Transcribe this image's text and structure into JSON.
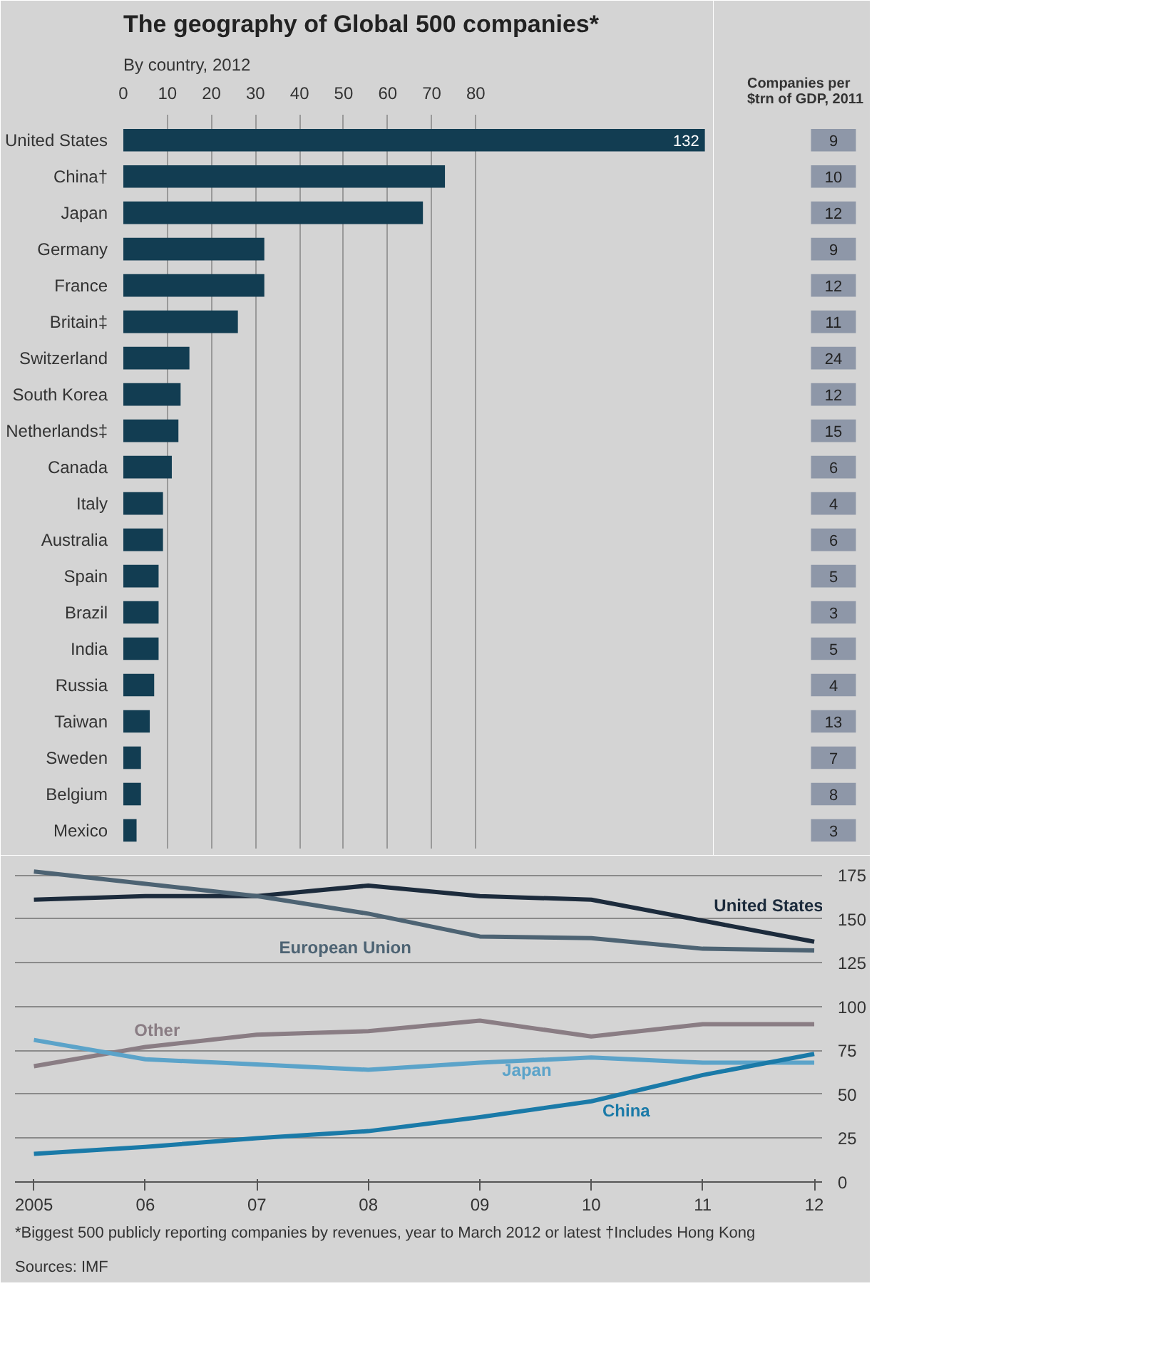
{
  "chart_data": [
    {
      "type": "bar",
      "title": "The geography of Global 500 companies*",
      "subtitle": "By country, 2012",
      "orientation": "horizontal",
      "categories": [
        "United States",
        "China†",
        "Japan",
        "Germany",
        "France",
        "Britain‡",
        "Switzerland",
        "South Korea",
        "Netherlands‡",
        "Canada",
        "Italy",
        "Australia",
        "Spain",
        "Brazil",
        "India",
        "Russia",
        "Taiwan",
        "Sweden",
        "Belgium",
        "Mexico"
      ],
      "values": [
        132,
        73,
        68,
        32,
        32,
        26,
        15,
        13,
        12.5,
        11,
        9,
        9,
        8,
        8,
        8,
        7,
        6,
        4,
        4,
        3
      ],
      "value_labels": [
        "132",
        null,
        null,
        null,
        null,
        null,
        null,
        null,
        null,
        null,
        null,
        null,
        null,
        null,
        null,
        null,
        null,
        null,
        null,
        null
      ],
      "color": "#123d52",
      "xlim": [
        0,
        134
      ],
      "xticks": [
        0,
        10,
        20,
        30,
        40,
        50,
        60,
        70,
        80
      ],
      "grid": "x"
    },
    {
      "type": "other",
      "title": "Companies per $trn of GDP, 2011",
      "values": [
        9,
        10,
        12,
        9,
        12,
        11,
        24,
        12,
        15,
        6,
        4,
        6,
        5,
        3,
        5,
        4,
        13,
        7,
        8,
        3
      ],
      "data_labels": true
    },
    {
      "type": "line",
      "x": [
        2005,
        2006,
        2007,
        2008,
        2009,
        2010,
        2011,
        2012
      ],
      "xlim": [
        2004.83,
        2012.07
      ],
      "xticks": [
        {
          "value": 2005,
          "label": "2005"
        },
        {
          "value": 2006,
          "label": "06"
        },
        {
          "value": 2007,
          "label": "07"
        },
        {
          "value": 2008,
          "label": "08"
        },
        {
          "value": 2009,
          "label": "09"
        },
        {
          "value": 2010,
          "label": "10"
        },
        {
          "value": 2011,
          "label": "11"
        },
        {
          "value": 2012,
          "label": "12"
        }
      ],
      "ylim": [
        0,
        182
      ],
      "yticks": [
        0,
        25,
        50,
        75,
        100,
        125,
        150,
        175
      ],
      "grid": "y",
      "series": [
        {
          "name": "United States",
          "color": "#1c2b3c",
          "values": [
            161,
            163,
            163,
            169,
            163,
            161,
            149,
            137
          ]
        },
        {
          "name": "European Union",
          "color": "#4d6373",
          "values": [
            177,
            170,
            163,
            153,
            140,
            139,
            133,
            132
          ]
        },
        {
          "name": "Other",
          "color": "#8a7d84",
          "values": [
            66,
            77,
            84,
            86,
            92,
            83,
            90,
            90
          ]
        },
        {
          "name": "Japan",
          "color": "#5ba3c9",
          "values": [
            81,
            70,
            67,
            64,
            68,
            71,
            68,
            68
          ]
        },
        {
          "name": "China",
          "color": "#1a7aa8",
          "values": [
            16,
            20,
            25,
            29,
            37,
            46,
            61,
            73
          ]
        }
      ],
      "annotations": [
        "*Biggest 500 publicly reporting companies by revenues, year to March 2012 or latest   †Includes Hong Kong",
        "Sources: IMF"
      ]
    }
  ]
}
